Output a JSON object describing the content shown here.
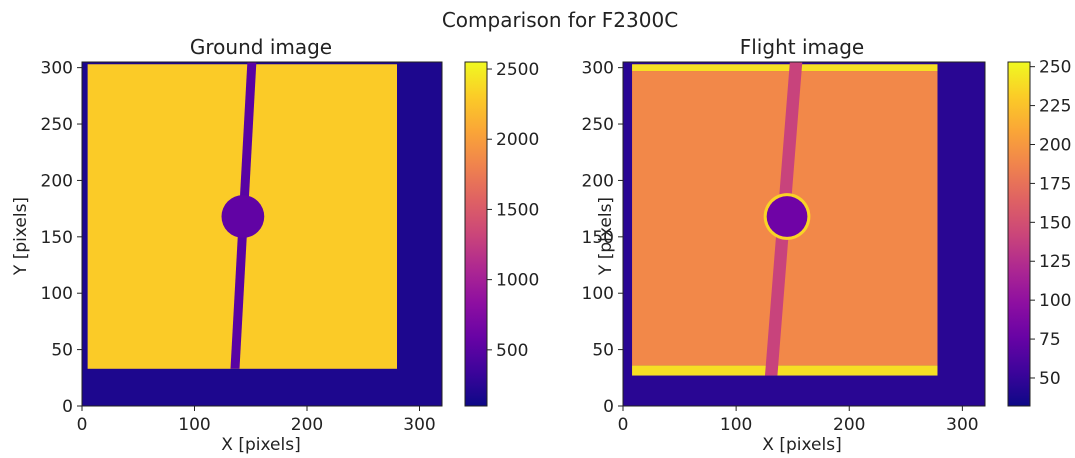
{
  "suptitle": "Comparison for F2300C",
  "chart_data": [
    {
      "type": "heatmap",
      "title": "Ground image",
      "xlabel": "X [pixels]",
      "ylabel": "Y [pixels]",
      "xlim": [
        0,
        320
      ],
      "ylim": [
        0,
        305
      ],
      "xticks": [
        0,
        100,
        200,
        300
      ],
      "yticks": [
        0,
        50,
        100,
        150,
        200,
        250,
        300
      ],
      "colormap": "plasma",
      "colorbar": {
        "range": [
          100,
          2550
        ],
        "ticks": [
          500,
          1000,
          1500,
          2000,
          2500
        ]
      },
      "features": {
        "background_value": 180,
        "illuminated_region": {
          "x": [
            5,
            280
          ],
          "y": [
            33,
            303
          ],
          "value": 2300
        },
        "stripe": {
          "x_at_bottom": 136,
          "x_at_top": 151,
          "width": 8,
          "value": 500
        },
        "spot": {
          "center": [
            143,
            168
          ],
          "radius": 19,
          "value": 550
        }
      }
    },
    {
      "type": "heatmap",
      "title": "Flight image",
      "xlabel": "X [pixels]",
      "ylabel": "Y [pixels]",
      "xlim": [
        0,
        320
      ],
      "ylim": [
        0,
        305
      ],
      "xticks": [
        0,
        100,
        200,
        300
      ],
      "yticks": [
        0,
        50,
        100,
        150,
        200,
        250,
        300
      ],
      "colormap": "plasma",
      "colorbar": {
        "range": [
          32,
          253
        ],
        "ticks": [
          50,
          75,
          100,
          125,
          150,
          175,
          200,
          225,
          250
        ]
      },
      "features": {
        "background_value": 45,
        "illuminated_region": {
          "x": [
            8,
            278
          ],
          "y": [
            30,
            303
          ],
          "value": 190
        },
        "bright_bottom_edge": {
          "y": [
            27,
            36
          ],
          "value": 240
        },
        "bright_top_edge": {
          "y": [
            297,
            303
          ],
          "value": 240
        },
        "stripe": {
          "x_at_bottom": 131,
          "x_at_top": 153,
          "width": 11,
          "value": 140
        },
        "spot": {
          "center": [
            145,
            168
          ],
          "radius": 18,
          "value": 80,
          "ring_value": 235
        }
      }
    }
  ]
}
